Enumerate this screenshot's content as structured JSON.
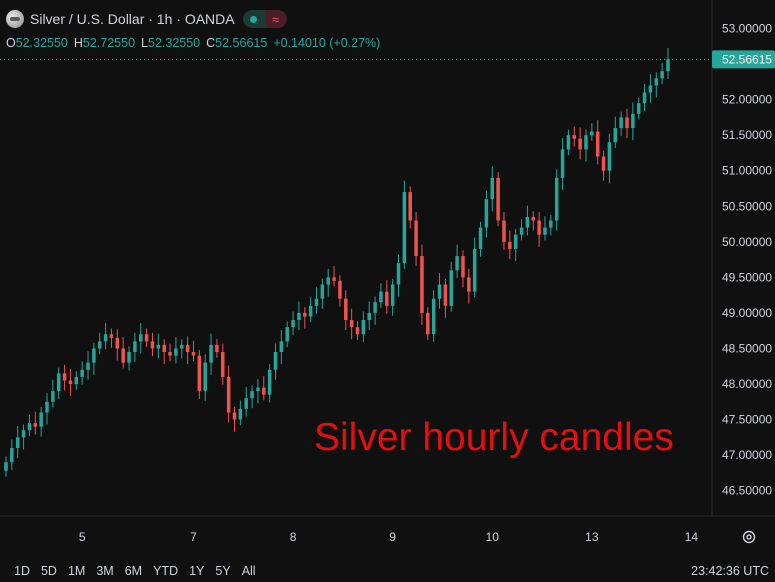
{
  "header": {
    "symbol": "Silver / U.S. Dollar · 1h · OANDA",
    "open_label": "O",
    "open": "52.32550",
    "high_label": "H",
    "high": "52.72550",
    "low_label": "L",
    "low": "52.32550",
    "close_label": "C",
    "close": "52.56615",
    "change": "+0.14010 (+0.27%)"
  },
  "watermark": "Silver hourly candles",
  "ranges": [
    "1D",
    "5D",
    "1M",
    "3M",
    "6M",
    "YTD",
    "1Y",
    "5Y",
    "All"
  ],
  "clock": "23:42:36 UTC",
  "colors": {
    "up": "#26a69a",
    "down": "#ef5350",
    "background": "#101010",
    "price_tag": "#26a69a",
    "watermark": "#e60f0f"
  },
  "chart_data": {
    "type": "candlestick",
    "title": "Silver / U.S. Dollar · 1h · OANDA",
    "ylim": [
      46.2,
      53.12
    ],
    "yticks": [
      "53.00000",
      "52.50000",
      "52.00000",
      "51.50000",
      "51.00000",
      "50.50000",
      "50.00000",
      "49.50000",
      "49.00000",
      "48.50000",
      "48.00000",
      "47.50000",
      "47.00000",
      "46.50000"
    ],
    "xticks": [
      {
        "label": "5",
        "index": 13
      },
      {
        "label": "7",
        "index": 32
      },
      {
        "label": "8",
        "index": 49
      },
      {
        "label": "9",
        "index": 66
      },
      {
        "label": "10",
        "index": 83
      },
      {
        "label": "13",
        "index": 100
      },
      {
        "label": "14",
        "index": 117
      }
    ],
    "last_price": "52.56615",
    "closes": [
      46.9,
      47.1,
      47.25,
      47.35,
      47.45,
      47.4,
      47.6,
      47.75,
      47.9,
      48.15,
      48.05,
      48.0,
      48.1,
      48.2,
      48.3,
      48.5,
      48.6,
      48.7,
      48.65,
      48.5,
      48.3,
      48.45,
      48.6,
      48.7,
      48.6,
      48.5,
      48.55,
      48.45,
      48.4,
      48.5,
      48.55,
      48.45,
      48.4,
      47.9,
      48.3,
      48.55,
      48.45,
      48.1,
      47.6,
      47.5,
      47.65,
      47.8,
      47.9,
      47.95,
      47.85,
      48.2,
      48.45,
      48.6,
      48.8,
      48.9,
      49.0,
      48.95,
      49.1,
      49.2,
      49.4,
      49.5,
      49.45,
      49.2,
      48.9,
      48.8,
      48.7,
      48.9,
      49.0,
      49.15,
      49.3,
      49.1,
      49.4,
      49.7,
      50.7,
      50.3,
      49.8,
      49.0,
      48.7,
      49.2,
      49.4,
      49.1,
      49.6,
      49.8,
      49.5,
      49.3,
      49.9,
      50.2,
      50.6,
      50.9,
      50.3,
      50.0,
      49.9,
      50.1,
      50.2,
      50.35,
      50.3,
      50.1,
      50.2,
      50.3,
      50.9,
      51.3,
      51.5,
      51.45,
      51.3,
      51.5,
      51.55,
      51.2,
      51.0,
      51.4,
      51.6,
      51.75,
      51.6,
      51.8,
      51.95,
      52.1,
      52.2,
      52.3,
      52.4,
      52.56615
    ]
  }
}
